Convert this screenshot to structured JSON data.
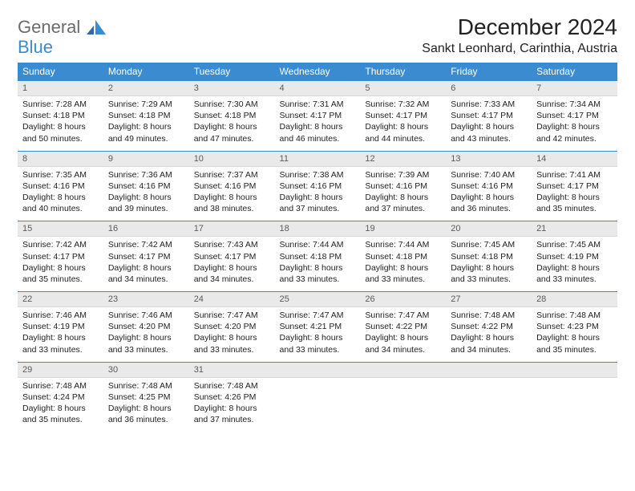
{
  "logo": {
    "line1": "General",
    "line2": "Blue"
  },
  "title": "December 2024",
  "location": "Sankt Leonhard, Carinthia, Austria",
  "colors": {
    "header_bg": "#3a8bd0",
    "header_text": "#ffffff",
    "daynum_bg": "#e9e9e9",
    "daynum_text": "#5a5a5a",
    "row_border": "#3a8bd0",
    "body_text": "#222222",
    "logo_gray": "#6b6b6b",
    "logo_blue": "#3a8bd0"
  },
  "weekdays": [
    "Sunday",
    "Monday",
    "Tuesday",
    "Wednesday",
    "Thursday",
    "Friday",
    "Saturday"
  ],
  "weeks": [
    [
      {
        "n": "1",
        "sunrise": "Sunrise: 7:28 AM",
        "sunset": "Sunset: 4:18 PM",
        "day1": "Daylight: 8 hours",
        "day2": "and 50 minutes."
      },
      {
        "n": "2",
        "sunrise": "Sunrise: 7:29 AM",
        "sunset": "Sunset: 4:18 PM",
        "day1": "Daylight: 8 hours",
        "day2": "and 49 minutes."
      },
      {
        "n": "3",
        "sunrise": "Sunrise: 7:30 AM",
        "sunset": "Sunset: 4:18 PM",
        "day1": "Daylight: 8 hours",
        "day2": "and 47 minutes."
      },
      {
        "n": "4",
        "sunrise": "Sunrise: 7:31 AM",
        "sunset": "Sunset: 4:17 PM",
        "day1": "Daylight: 8 hours",
        "day2": "and 46 minutes."
      },
      {
        "n": "5",
        "sunrise": "Sunrise: 7:32 AM",
        "sunset": "Sunset: 4:17 PM",
        "day1": "Daylight: 8 hours",
        "day2": "and 44 minutes."
      },
      {
        "n": "6",
        "sunrise": "Sunrise: 7:33 AM",
        "sunset": "Sunset: 4:17 PM",
        "day1": "Daylight: 8 hours",
        "day2": "and 43 minutes."
      },
      {
        "n": "7",
        "sunrise": "Sunrise: 7:34 AM",
        "sunset": "Sunset: 4:17 PM",
        "day1": "Daylight: 8 hours",
        "day2": "and 42 minutes."
      }
    ],
    [
      {
        "n": "8",
        "sunrise": "Sunrise: 7:35 AM",
        "sunset": "Sunset: 4:16 PM",
        "day1": "Daylight: 8 hours",
        "day2": "and 40 minutes."
      },
      {
        "n": "9",
        "sunrise": "Sunrise: 7:36 AM",
        "sunset": "Sunset: 4:16 PM",
        "day1": "Daylight: 8 hours",
        "day2": "and 39 minutes."
      },
      {
        "n": "10",
        "sunrise": "Sunrise: 7:37 AM",
        "sunset": "Sunset: 4:16 PM",
        "day1": "Daylight: 8 hours",
        "day2": "and 38 minutes."
      },
      {
        "n": "11",
        "sunrise": "Sunrise: 7:38 AM",
        "sunset": "Sunset: 4:16 PM",
        "day1": "Daylight: 8 hours",
        "day2": "and 37 minutes."
      },
      {
        "n": "12",
        "sunrise": "Sunrise: 7:39 AM",
        "sunset": "Sunset: 4:16 PM",
        "day1": "Daylight: 8 hours",
        "day2": "and 37 minutes."
      },
      {
        "n": "13",
        "sunrise": "Sunrise: 7:40 AM",
        "sunset": "Sunset: 4:16 PM",
        "day1": "Daylight: 8 hours",
        "day2": "and 36 minutes."
      },
      {
        "n": "14",
        "sunrise": "Sunrise: 7:41 AM",
        "sunset": "Sunset: 4:17 PM",
        "day1": "Daylight: 8 hours",
        "day2": "and 35 minutes."
      }
    ],
    [
      {
        "n": "15",
        "sunrise": "Sunrise: 7:42 AM",
        "sunset": "Sunset: 4:17 PM",
        "day1": "Daylight: 8 hours",
        "day2": "and 35 minutes."
      },
      {
        "n": "16",
        "sunrise": "Sunrise: 7:42 AM",
        "sunset": "Sunset: 4:17 PM",
        "day1": "Daylight: 8 hours",
        "day2": "and 34 minutes."
      },
      {
        "n": "17",
        "sunrise": "Sunrise: 7:43 AM",
        "sunset": "Sunset: 4:17 PM",
        "day1": "Daylight: 8 hours",
        "day2": "and 34 minutes."
      },
      {
        "n": "18",
        "sunrise": "Sunrise: 7:44 AM",
        "sunset": "Sunset: 4:18 PM",
        "day1": "Daylight: 8 hours",
        "day2": "and 33 minutes."
      },
      {
        "n": "19",
        "sunrise": "Sunrise: 7:44 AM",
        "sunset": "Sunset: 4:18 PM",
        "day1": "Daylight: 8 hours",
        "day2": "and 33 minutes."
      },
      {
        "n": "20",
        "sunrise": "Sunrise: 7:45 AM",
        "sunset": "Sunset: 4:18 PM",
        "day1": "Daylight: 8 hours",
        "day2": "and 33 minutes."
      },
      {
        "n": "21",
        "sunrise": "Sunrise: 7:45 AM",
        "sunset": "Sunset: 4:19 PM",
        "day1": "Daylight: 8 hours",
        "day2": "and 33 minutes."
      }
    ],
    [
      {
        "n": "22",
        "sunrise": "Sunrise: 7:46 AM",
        "sunset": "Sunset: 4:19 PM",
        "day1": "Daylight: 8 hours",
        "day2": "and 33 minutes."
      },
      {
        "n": "23",
        "sunrise": "Sunrise: 7:46 AM",
        "sunset": "Sunset: 4:20 PM",
        "day1": "Daylight: 8 hours",
        "day2": "and 33 minutes."
      },
      {
        "n": "24",
        "sunrise": "Sunrise: 7:47 AM",
        "sunset": "Sunset: 4:20 PM",
        "day1": "Daylight: 8 hours",
        "day2": "and 33 minutes."
      },
      {
        "n": "25",
        "sunrise": "Sunrise: 7:47 AM",
        "sunset": "Sunset: 4:21 PM",
        "day1": "Daylight: 8 hours",
        "day2": "and 33 minutes."
      },
      {
        "n": "26",
        "sunrise": "Sunrise: 7:47 AM",
        "sunset": "Sunset: 4:22 PM",
        "day1": "Daylight: 8 hours",
        "day2": "and 34 minutes."
      },
      {
        "n": "27",
        "sunrise": "Sunrise: 7:48 AM",
        "sunset": "Sunset: 4:22 PM",
        "day1": "Daylight: 8 hours",
        "day2": "and 34 minutes."
      },
      {
        "n": "28",
        "sunrise": "Sunrise: 7:48 AM",
        "sunset": "Sunset: 4:23 PM",
        "day1": "Daylight: 8 hours",
        "day2": "and 35 minutes."
      }
    ],
    [
      {
        "n": "29",
        "sunrise": "Sunrise: 7:48 AM",
        "sunset": "Sunset: 4:24 PM",
        "day1": "Daylight: 8 hours",
        "day2": "and 35 minutes."
      },
      {
        "n": "30",
        "sunrise": "Sunrise: 7:48 AM",
        "sunset": "Sunset: 4:25 PM",
        "day1": "Daylight: 8 hours",
        "day2": "and 36 minutes."
      },
      {
        "n": "31",
        "sunrise": "Sunrise: 7:48 AM",
        "sunset": "Sunset: 4:26 PM",
        "day1": "Daylight: 8 hours",
        "day2": "and 37 minutes."
      },
      {
        "empty": true
      },
      {
        "empty": true
      },
      {
        "empty": true
      },
      {
        "empty": true
      }
    ]
  ]
}
